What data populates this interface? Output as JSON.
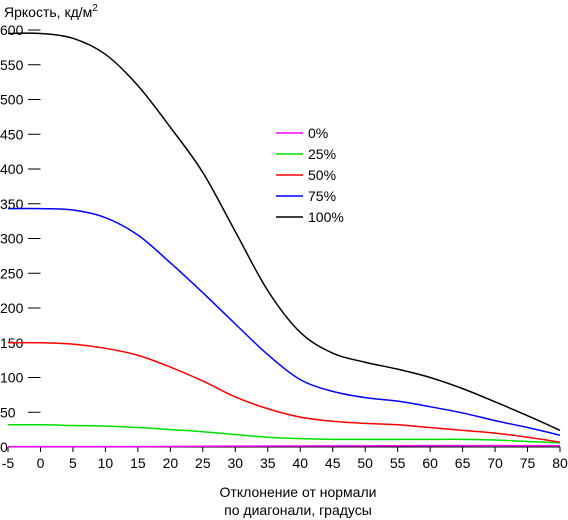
{
  "chart_data": {
    "type": "line",
    "ylabel": "Яркость, кд/м",
    "ylabel_sup": "2",
    "xlabel_line1": "Отклонение от нормали",
    "xlabel_line2": "по диагонали, градусы",
    "xlim": [
      -5,
      80
    ],
    "ylim": [
      0,
      600
    ],
    "xticks": [
      -5,
      0,
      5,
      10,
      15,
      20,
      25,
      30,
      35,
      40,
      45,
      50,
      55,
      60,
      65,
      70,
      75,
      80
    ],
    "yticks": [
      0,
      50,
      100,
      150,
      200,
      250,
      300,
      350,
      400,
      450,
      500,
      550,
      600
    ],
    "grid": false,
    "legend_position": "center-right",
    "x": [
      -5,
      0,
      5,
      10,
      15,
      20,
      25,
      30,
      35,
      40,
      45,
      50,
      55,
      60,
      65,
      70,
      75,
      80
    ],
    "series": [
      {
        "name": "0%",
        "color": "#ff00ff",
        "values": [
          0.5,
          0.5,
          0.5,
          0.5,
          0.6,
          0.8,
          1.0,
          1.2,
          1.4,
          1.5,
          1.6,
          1.7,
          1.8,
          1.9,
          2.0,
          2.1,
          2.0,
          2.0
        ]
      },
      {
        "name": "25%",
        "color": "#00e000",
        "values": [
          32,
          32,
          31,
          30,
          28,
          25,
          22,
          18,
          14,
          12,
          11,
          11,
          11,
          11,
          11,
          10,
          8,
          6
        ]
      },
      {
        "name": "50%",
        "color": "#ff0000",
        "values": [
          150,
          150,
          148,
          142,
          132,
          115,
          95,
          72,
          55,
          43,
          37,
          34,
          32,
          28,
          24,
          20,
          14,
          7
        ]
      },
      {
        "name": "75%",
        "color": "#0000ff",
        "values": [
          343,
          343,
          341,
          330,
          305,
          265,
          222,
          177,
          133,
          97,
          80,
          71,
          66,
          58,
          49,
          38,
          28,
          17
        ]
      },
      {
        "name": "100%",
        "color": "#000000",
        "values": [
          595,
          595,
          588,
          565,
          520,
          460,
          395,
          310,
          225,
          165,
          135,
          122,
          112,
          100,
          84,
          65,
          45,
          24
        ]
      }
    ]
  }
}
